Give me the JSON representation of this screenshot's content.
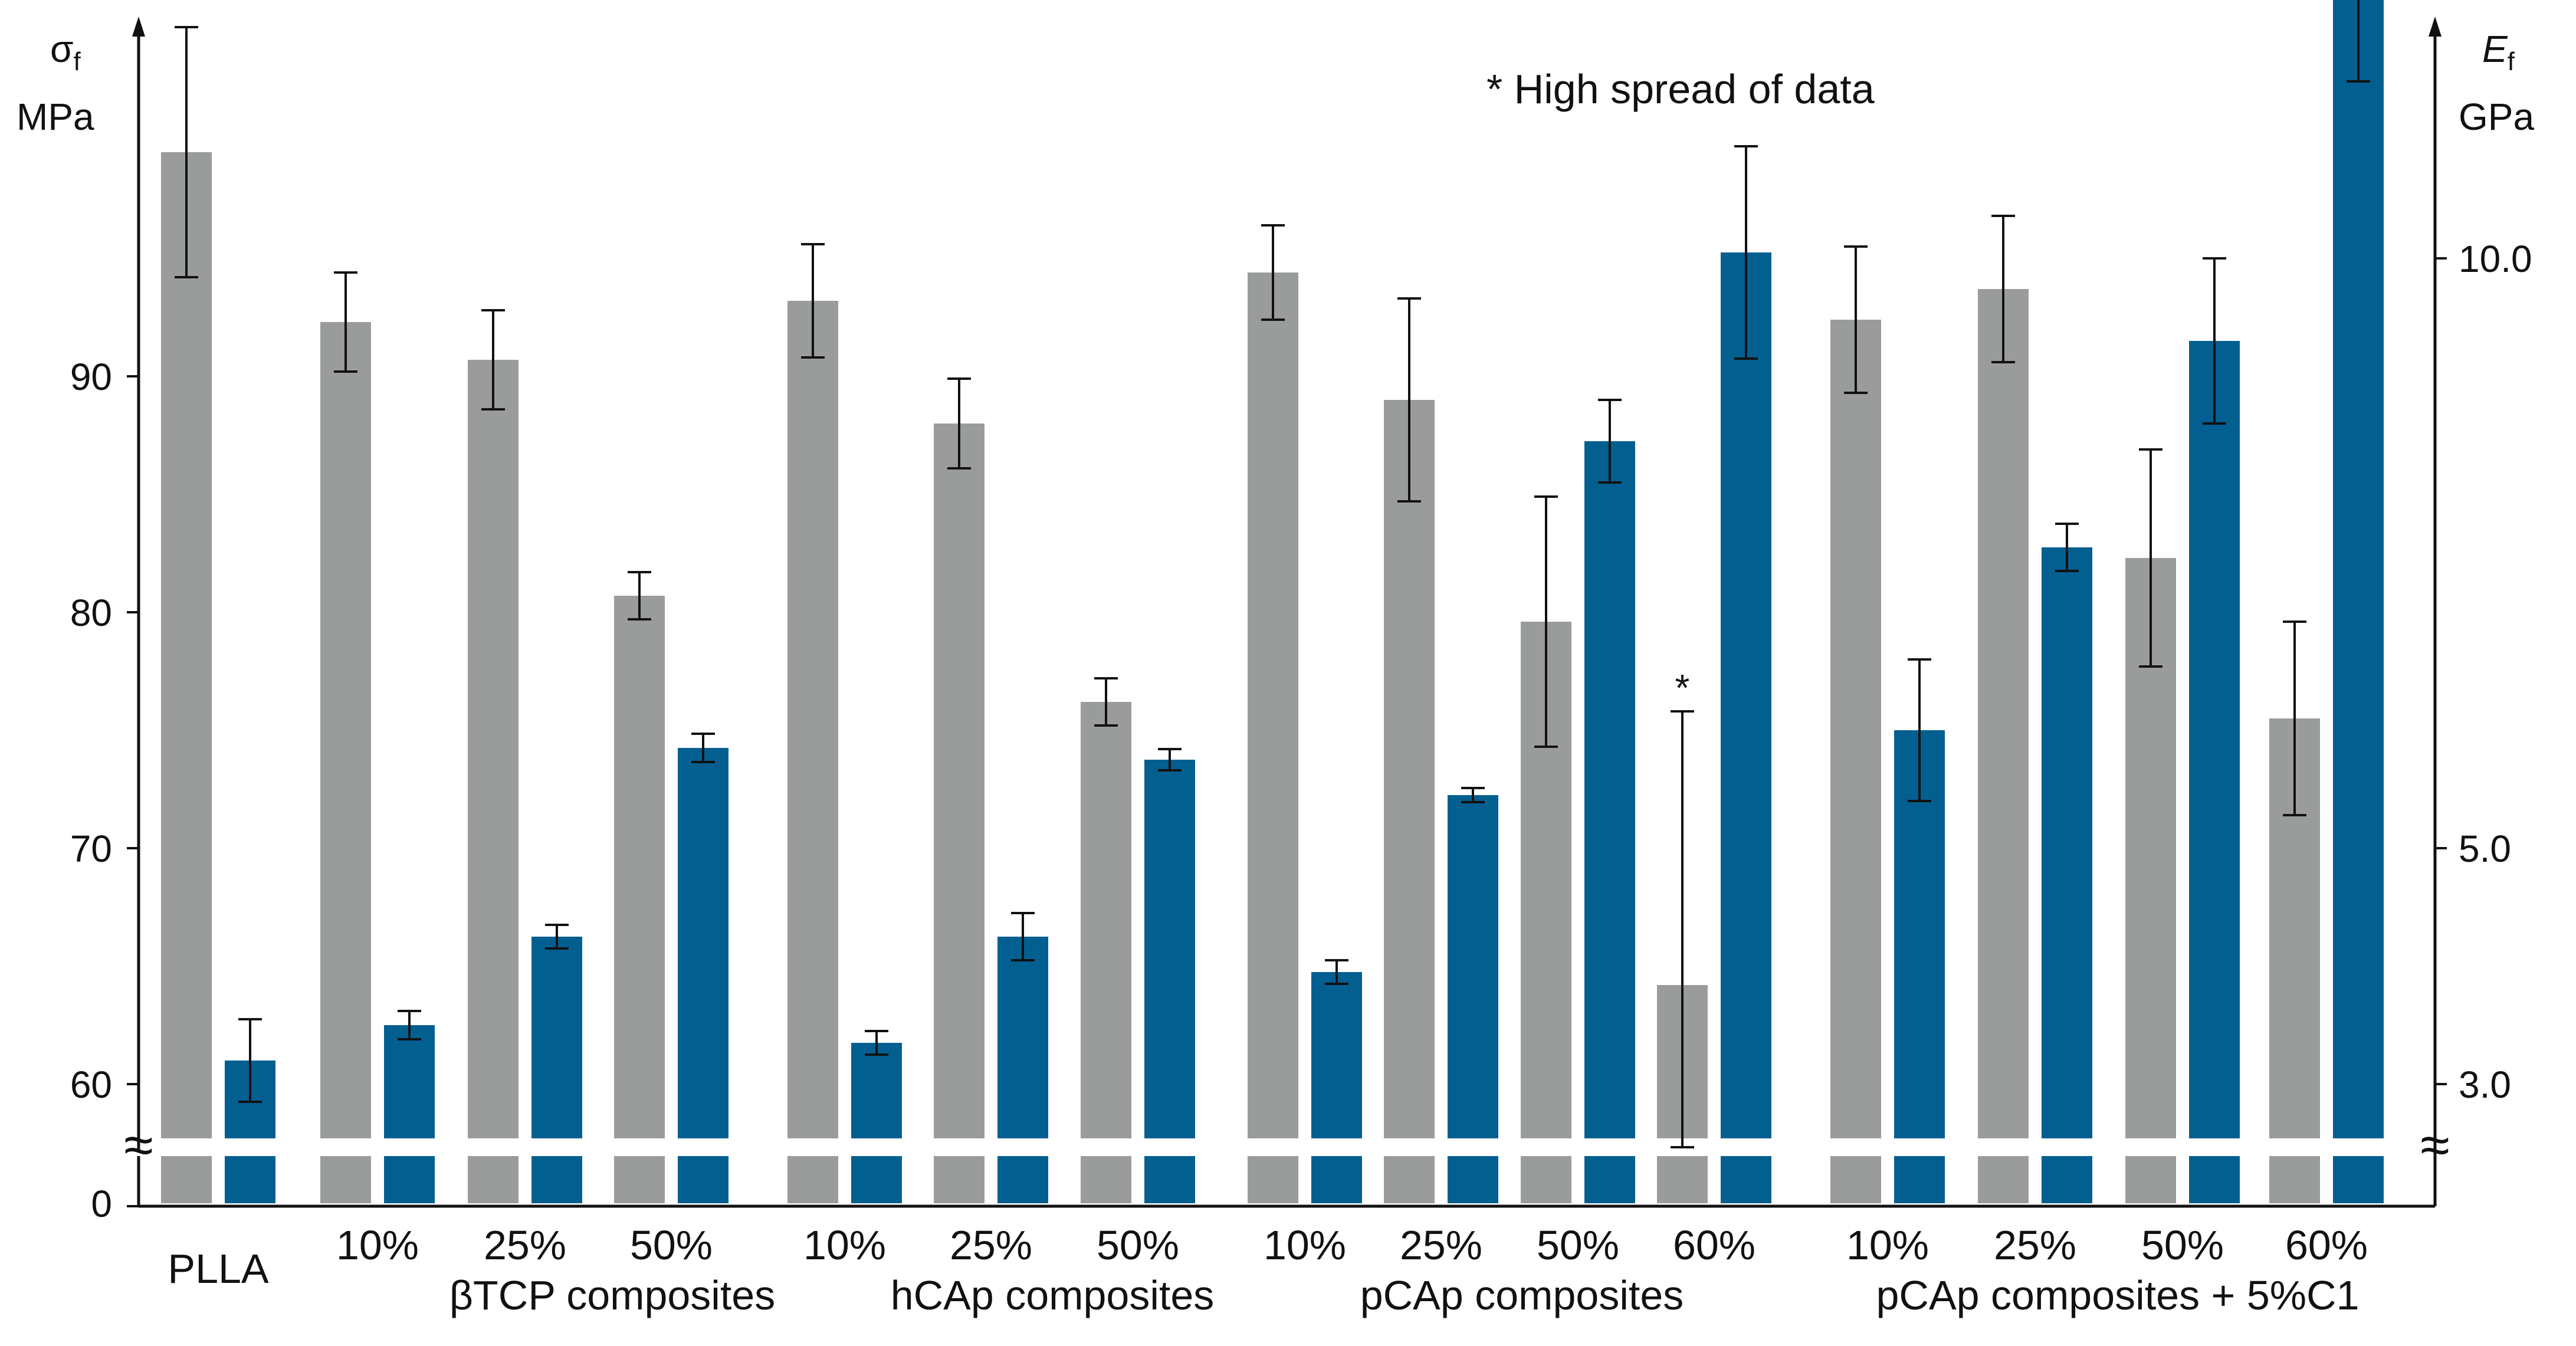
{
  "chart_data": {
    "type": "bar",
    "note": "* High spread of data",
    "left_axis": {
      "label_symbol": "σ",
      "label_subscript": "f",
      "unit": "MPa",
      "ticks": [
        "0",
        "60",
        "70",
        "80",
        "90"
      ],
      "break_mark": "≈"
    },
    "right_axis": {
      "label_symbol": "E",
      "label_subscript": "f",
      "unit": "GPa",
      "ticks": [
        "3.0",
        "5.0",
        "10.0"
      ],
      "break_mark": "≈"
    },
    "colors": {
      "strength": "#9a9c9c",
      "modulus": "#045f91"
    },
    "groups": [
      {
        "name": "PLLA",
        "samples": [
          {
            "label": "",
            "strength": {
              "value": 99.5,
              "error": 5.3
            },
            "modulus": {
              "value": 3.2,
              "error": 0.35
            }
          }
        ]
      },
      {
        "name": "βTCP composites",
        "samples": [
          {
            "label": "10%",
            "strength": {
              "value": 92.3,
              "error": 2.1
            },
            "modulus": {
              "value": 3.5,
              "error": 0.12
            }
          },
          {
            "label": "25%",
            "strength": {
              "value": 90.7,
              "error": 2.1
            },
            "modulus": {
              "value": 4.25,
              "error": 0.1
            }
          },
          {
            "label": "50%",
            "strength": {
              "value": 80.7,
              "error": 1.0
            },
            "modulus": {
              "value": 5.85,
              "error": 0.12
            }
          }
        ]
      },
      {
        "name": "hCAp composites",
        "samples": [
          {
            "label": "10%",
            "strength": {
              "value": 93.2,
              "error": 2.4
            },
            "modulus": {
              "value": 3.35,
              "error": 0.1
            }
          },
          {
            "label": "25%",
            "strength": {
              "value": 88.0,
              "error": 1.9
            },
            "modulus": {
              "value": 4.25,
              "error": 0.2
            }
          },
          {
            "label": "50%",
            "strength": {
              "value": 76.2,
              "error": 1.0
            },
            "modulus": {
              "value": 5.75,
              "error": 0.09
            }
          }
        ]
      },
      {
        "name": "pCAp composites",
        "samples": [
          {
            "label": "10%",
            "strength": {
              "value": 94.4,
              "error": 2.0
            },
            "modulus": {
              "value": 3.95,
              "error": 0.1
            }
          },
          {
            "label": "25%",
            "strength": {
              "value": 89.0,
              "error": 4.3
            },
            "modulus": {
              "value": 5.45,
              "error": 0.06
            }
          },
          {
            "label": "50%",
            "strength": {
              "value": 79.6,
              "error": 5.3
            },
            "modulus": {
              "value": 8.45,
              "error": 0.35
            }
          },
          {
            "label": "60%",
            "strength": {
              "value": 64.2,
              "error": 11.6,
              "marked": true
            },
            "modulus": {
              "value": 10.05,
              "error": 0.9
            }
          }
        ]
      },
      {
        "name": "pCAp composites + 5%C1",
        "samples": [
          {
            "label": "10%",
            "strength": {
              "value": 92.4,
              "error": 3.1
            },
            "modulus": {
              "value": 6.0,
              "error": 0.6
            }
          },
          {
            "label": "25%",
            "strength": {
              "value": 93.7,
              "error": 3.1
            },
            "modulus": {
              "value": 7.55,
              "error": 0.2
            }
          },
          {
            "label": "50%",
            "strength": {
              "value": 82.3,
              "error": 4.6
            },
            "modulus": {
              "value": 9.3,
              "error": 0.7
            }
          },
          {
            "label": "60%",
            "strength": {
              "value": 75.5,
              "error": 4.1
            },
            "modulus": {
              "value": 12.2,
              "error": 0.7
            }
          }
        ]
      }
    ]
  }
}
